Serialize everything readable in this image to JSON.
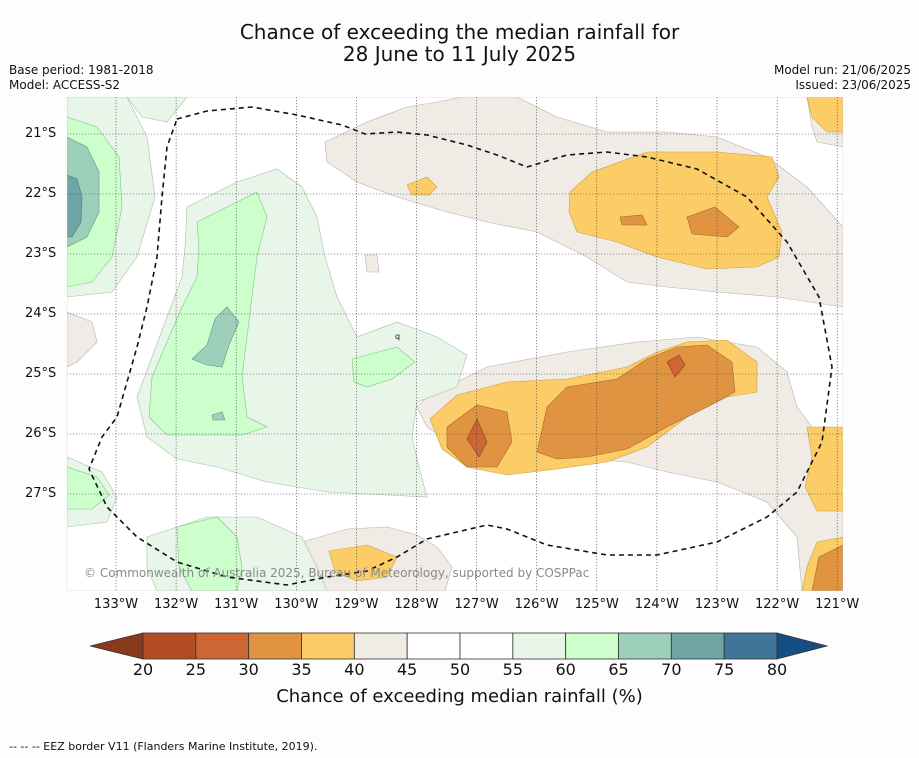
{
  "title": {
    "line1": "Chance of exceeding the median rainfall for",
    "line2": "28 June to 11 July 2025"
  },
  "meta": {
    "base_period": "Base period: 1981-2018",
    "model": "Model: ACCESS-S2",
    "model_run": "Model run: 21/06/2025",
    "issued": "Issued: 23/06/2025"
  },
  "map": {
    "copyright": "© Commonwealth of Australia 2025, Bureau of Meteorology, supported by COSPPac",
    "lon_labels": [
      "133°W",
      "132°W",
      "131°W",
      "130°W",
      "129°W",
      "128°W",
      "127°W",
      "126°W",
      "125°W",
      "124°W",
      "123°W",
      "122°W",
      "121°W"
    ],
    "lat_labels": [
      "21°S",
      "22°S",
      "23°S",
      "24°S",
      "25°S",
      "26°S",
      "27°S"
    ],
    "contour_label": "q",
    "colors": {
      "c20_25": "#b24c24",
      "c25_30": "#cd6632",
      "c30_35": "#e09442",
      "c35_40": "#fccd66",
      "c40_45": "#f0ebe4",
      "c45_55": "#ffffff",
      "c55_60": "#e8f5e9",
      "c60_65": "#ccffcc",
      "c65_70": "#9ecfba",
      "c70_75": "#6fa5a5",
      "c75_80": "#3f7698",
      "c80": "#154e82",
      "under20": "#8a3a1c"
    }
  },
  "colorbar": {
    "ticks": [
      "20",
      "25",
      "30",
      "35",
      "40",
      "45",
      "50",
      "55",
      "60",
      "65",
      "70",
      "75",
      "80"
    ],
    "label": "Chance of exceeding median rainfall (%)"
  },
  "footer": "--  --  -- EEZ border V11 (Flanders Marine Institute, 2019)."
}
